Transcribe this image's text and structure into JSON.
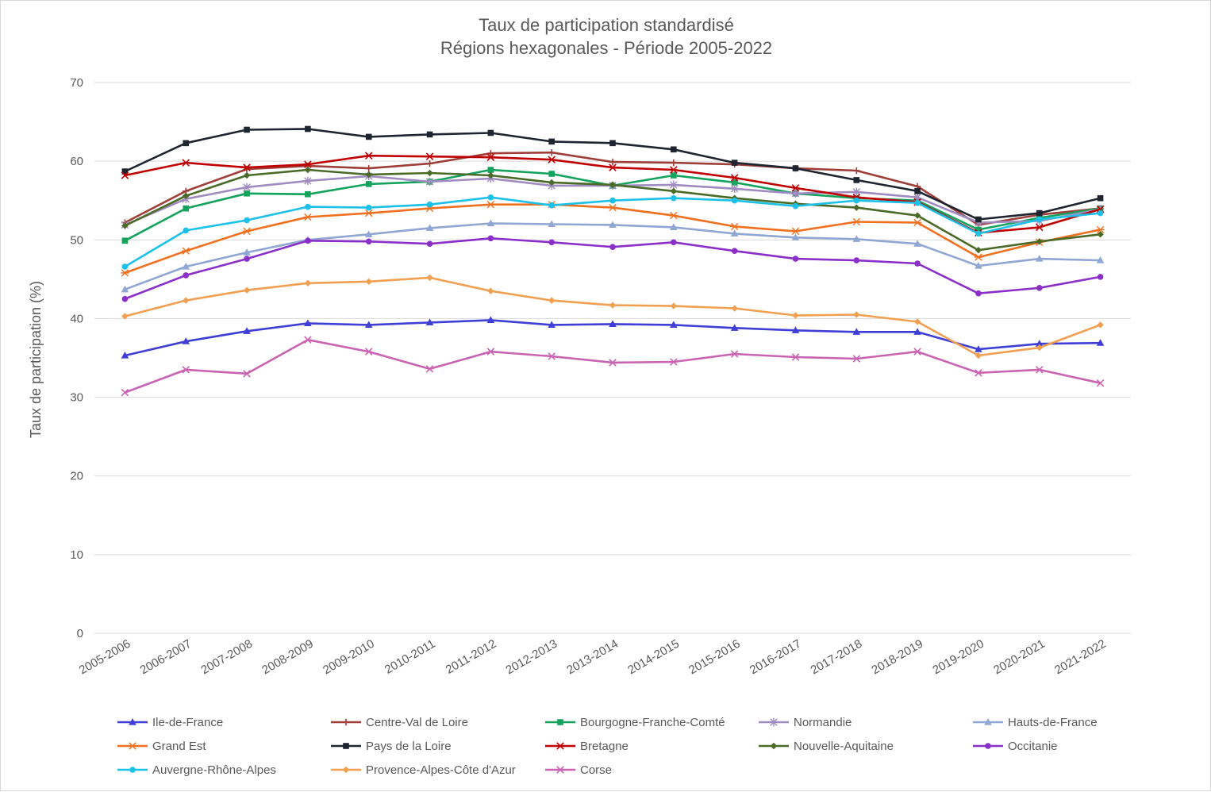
{
  "chart_data": {
    "type": "line",
    "title": "Taux de participation standardisé",
    "subtitle": "Régions hexagonales - Période 2005-2022",
    "xlabel": "",
    "ylabel": "Taux de participation (%)",
    "ylim": [
      0,
      70
    ],
    "yticks": [
      0,
      10,
      20,
      30,
      40,
      50,
      60,
      70
    ],
    "grid": "horizontal",
    "legend_position": "bottom",
    "categories": [
      "2005-2006",
      "2006-2007",
      "2007-2008",
      "2008-2009",
      "2009-2010",
      "2010-2011",
      "2011-2012",
      "2012-2013",
      "2013-2014",
      "2014-2015",
      "2015-2016",
      "2016-2017",
      "2017-2018",
      "2018-2019",
      "2019-2020",
      "2020-2021",
      "2021-2022"
    ],
    "series": [
      {
        "name": "Ile-de-France",
        "color": "#3f3fd6",
        "marker": "triangle",
        "values": [
          35.3,
          37.1,
          38.4,
          39.4,
          39.2,
          39.5,
          39.8,
          39.2,
          39.3,
          39.2,
          38.8,
          38.5,
          38.3,
          38.3,
          36.1,
          36.8,
          36.9
        ]
      },
      {
        "name": "Centre-Val de Loire",
        "color": "#9e3f3a",
        "marker": "plus",
        "values": [
          52.2,
          56.2,
          59.0,
          59.4,
          59.1,
          59.7,
          61.0,
          61.1,
          59.9,
          59.8,
          59.6,
          59.1,
          58.8,
          56.8,
          51.9,
          53.2,
          54.0
        ]
      },
      {
        "name": "Bourgogne-Franche-Comté",
        "color": "#13a35c",
        "marker": "square",
        "values": [
          49.9,
          54.0,
          55.9,
          55.8,
          57.1,
          57.4,
          58.9,
          58.4,
          56.9,
          58.2,
          57.3,
          55.9,
          55.3,
          55.0,
          51.3,
          52.8,
          54.0
        ]
      },
      {
        "name": "Normandie",
        "color": "#a08cc0",
        "marker": "star",
        "values": [
          51.9,
          55.2,
          56.7,
          57.5,
          58.1,
          57.4,
          57.8,
          56.9,
          56.9,
          57.0,
          56.5,
          55.9,
          56.1,
          55.4,
          52.2,
          52.4,
          53.9
        ]
      },
      {
        "name": "Hauts-de-France",
        "color": "#90a7d3",
        "marker": "triangle",
        "values": [
          43.7,
          46.6,
          48.4,
          50.0,
          50.7,
          51.5,
          52.1,
          52.0,
          51.9,
          51.6,
          50.8,
          50.3,
          50.1,
          49.5,
          46.7,
          47.6,
          47.4
        ]
      },
      {
        "name": "Grand Est",
        "color": "#f07020",
        "marker": "asterisk",
        "values": [
          45.8,
          48.6,
          51.1,
          52.9,
          53.4,
          54.0,
          54.5,
          54.5,
          54.1,
          53.1,
          51.7,
          51.1,
          52.3,
          52.2,
          47.8,
          49.7,
          51.3
        ]
      },
      {
        "name": "Pays de la Loire",
        "color": "#1f2530",
        "marker": "square",
        "values": [
          58.7,
          62.3,
          64.0,
          64.1,
          63.1,
          63.4,
          63.6,
          62.5,
          62.3,
          61.5,
          59.8,
          59.1,
          57.6,
          56.2,
          52.6,
          53.4,
          55.3
        ]
      },
      {
        "name": "Bretagne",
        "color": "#c00000",
        "marker": "x",
        "values": [
          58.2,
          59.8,
          59.2,
          59.6,
          60.7,
          60.6,
          60.5,
          60.2,
          59.2,
          58.9,
          57.9,
          56.6,
          55.4,
          54.8,
          50.9,
          51.6,
          53.9
        ]
      },
      {
        "name": "Nouvelle-Aquitaine",
        "color": "#4a6a28",
        "marker": "diamond",
        "values": [
          51.8,
          55.6,
          58.2,
          58.9,
          58.3,
          58.5,
          58.2,
          57.3,
          57.0,
          56.2,
          55.3,
          54.6,
          54.1,
          53.1,
          48.7,
          49.8,
          50.7
        ]
      },
      {
        "name": "Occitanie",
        "color": "#8a30c8",
        "marker": "circle",
        "values": [
          42.5,
          45.5,
          47.6,
          49.9,
          49.8,
          49.5,
          50.2,
          49.7,
          49.1,
          49.7,
          48.6,
          47.6,
          47.4,
          47.0,
          43.2,
          43.9,
          45.3
        ]
      },
      {
        "name": "Auvergne-Rhône-Alpes",
        "color": "#1bc1e8",
        "marker": "circle",
        "values": [
          46.6,
          51.2,
          52.5,
          54.2,
          54.1,
          54.5,
          55.4,
          54.4,
          55.0,
          55.3,
          55.0,
          54.3,
          55.0,
          54.7,
          50.8,
          52.6,
          53.4
        ]
      },
      {
        "name": "Provence-Alpes-Côte d'Azur",
        "color": "#f0a050",
        "marker": "diamond",
        "values": [
          40.3,
          42.3,
          43.6,
          44.5,
          44.7,
          45.2,
          43.5,
          42.3,
          41.7,
          41.6,
          41.3,
          40.4,
          40.5,
          39.6,
          35.3,
          36.3,
          39.2
        ]
      },
      {
        "name": "Corse",
        "color": "#c963b2",
        "marker": "x",
        "values": [
          30.6,
          33.5,
          33.0,
          37.3,
          35.8,
          33.6,
          35.8,
          35.2,
          34.4,
          34.5,
          35.5,
          35.1,
          34.9,
          35.8,
          33.1,
          33.5,
          31.8
        ]
      }
    ]
  }
}
